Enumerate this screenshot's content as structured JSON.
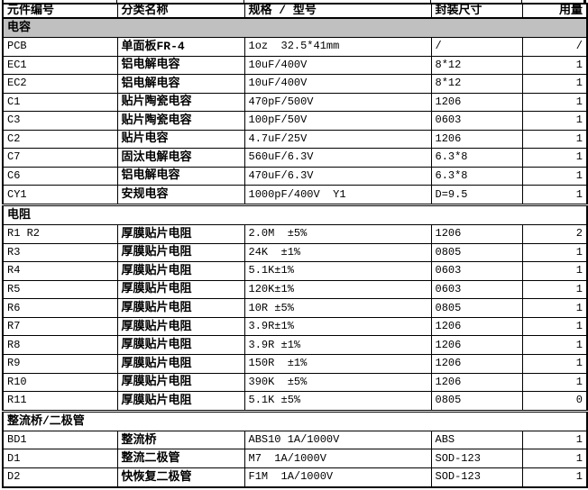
{
  "colors": {
    "section_shade": "#c0c0c0",
    "border": "#000000",
    "background": "#ffffff",
    "text": "#000000"
  },
  "table": {
    "columns": [
      "元件编号",
      "分类名称",
      "规格 / 型号",
      "封装尺寸",
      "用量"
    ],
    "sections": [
      {
        "title": "电容",
        "shaded": true,
        "rows": [
          [
            "PCB",
            "单面板FR-4",
            "1oz  32.5*41mm",
            "/",
            "/"
          ],
          [
            "EC1",
            "铝电解电容",
            "10uF/400V",
            "8*12",
            "1"
          ],
          [
            "EC2",
            "铝电解电容",
            "10uF/400V",
            "8*12",
            "1"
          ],
          [
            "C1",
            "贴片陶瓷电容",
            "470pF/500V",
            "1206",
            "1"
          ],
          [
            "C3",
            "贴片陶瓷电容",
            "100pF/50V",
            "0603",
            "1"
          ],
          [
            "C2",
            "贴片电容",
            "4.7uF/25V",
            "1206",
            "1"
          ],
          [
            "C7",
            "固汰电解电容",
            "560uF/6.3V",
            "6.3*8",
            "1"
          ],
          [
            "C6",
            "铝电解电容",
            "470uF/6.3V",
            "6.3*8",
            "1"
          ],
          [
            "CY1",
            "安规电容",
            "1000pF/400V  Y1",
            "D=9.5",
            "1"
          ]
        ]
      },
      {
        "title": "电阻",
        "shaded": false,
        "rows": [
          [
            "R1 R2",
            "厚膜贴片电阻",
            "2.0M  ±5%",
            "1206",
            "2"
          ],
          [
            "R3",
            "厚膜贴片电阻",
            "24K  ±1%",
            "0805",
            "1"
          ],
          [
            "R4",
            "厚膜贴片电阻",
            "5.1K±1%",
            "0603",
            "1"
          ],
          [
            "R5",
            "厚膜贴片电阻",
            "120K±1%",
            "0603",
            "1"
          ],
          [
            "R6",
            "厚膜贴片电阻",
            "10R ±5%",
            "0805",
            "1"
          ],
          [
            "R7",
            "厚膜贴片电阻",
            "3.9R±1%",
            "1206",
            "1"
          ],
          [
            "R8",
            "厚膜贴片电阻",
            "3.9R ±1%",
            "1206",
            "1"
          ],
          [
            "R9",
            "厚膜贴片电阻",
            "150R  ±1%",
            "1206",
            "1"
          ],
          [
            "R10",
            "厚膜贴片电阻",
            "390K  ±5%",
            "1206",
            "1"
          ],
          [
            "R11",
            "厚膜贴片电阻",
            "5.1K ±5%",
            "0805",
            "0"
          ]
        ]
      },
      {
        "title": "整流桥/二极管",
        "shaded": false,
        "rows": [
          [
            "BD1",
            "整流桥",
            "ABS10 1A/1000V",
            "ABS",
            "1"
          ],
          [
            "D1",
            "整流二极管",
            "M7  1A/1000V",
            "SOD-123",
            "1"
          ],
          [
            "D2",
            "快恢复二极管",
            "F1M  1A/1000V",
            "SOD-123",
            "1"
          ]
        ]
      }
    ]
  }
}
